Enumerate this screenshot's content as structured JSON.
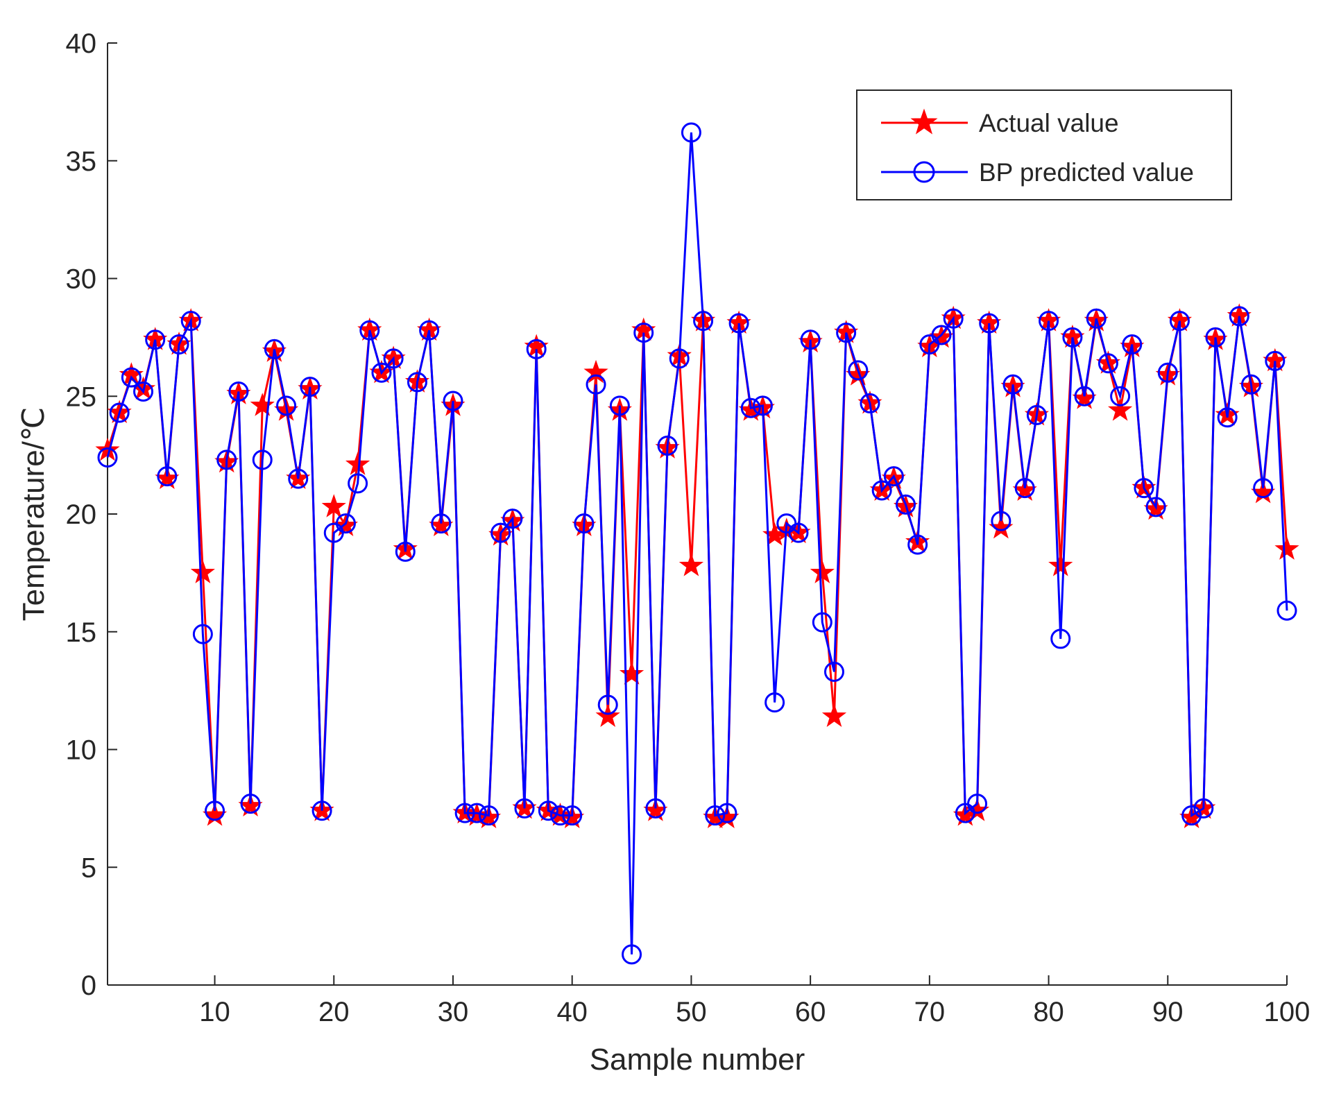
{
  "chart_data": {
    "type": "line",
    "title": "",
    "xlabel": "Sample number",
    "ylabel": "Temperature/℃",
    "xlim": [
      1,
      100
    ],
    "ylim": [
      0,
      40
    ],
    "grid": false,
    "legend_position": "top-right",
    "xticks": [
      10,
      20,
      30,
      40,
      50,
      60,
      70,
      80,
      90,
      100
    ],
    "xtick_labels": [
      "10",
      "20",
      "30",
      "40",
      "50",
      "60",
      "70",
      "80",
      "90",
      "100"
    ],
    "yticks": [
      0,
      5,
      10,
      15,
      20,
      25,
      30,
      35,
      40
    ],
    "ytick_labels": [
      "0",
      "5",
      "10",
      "15",
      "20",
      "25",
      "30",
      "35",
      "40"
    ],
    "x": [
      1,
      2,
      3,
      4,
      5,
      6,
      7,
      8,
      9,
      10,
      11,
      12,
      13,
      14,
      15,
      16,
      17,
      18,
      19,
      20,
      21,
      22,
      23,
      24,
      25,
      26,
      27,
      28,
      29,
      30,
      31,
      32,
      33,
      34,
      35,
      36,
      37,
      38,
      39,
      40,
      41,
      42,
      43,
      44,
      45,
      46,
      47,
      48,
      49,
      50,
      51,
      52,
      53,
      54,
      55,
      56,
      57,
      58,
      59,
      60,
      61,
      62,
      63,
      64,
      65,
      66,
      67,
      68,
      69,
      70,
      71,
      72,
      73,
      74,
      75,
      76,
      77,
      78,
      79,
      80,
      81,
      82,
      83,
      84,
      85,
      86,
      87,
      88,
      89,
      90,
      91,
      92,
      93,
      94,
      95,
      96,
      97,
      98,
      99,
      100
    ],
    "series": [
      {
        "name": "Actual value",
        "color": "#ff0000",
        "marker": "pentagram",
        "values": [
          22.7,
          24.3,
          25.9,
          25.3,
          27.4,
          21.5,
          27.2,
          28.2,
          17.5,
          7.2,
          22.2,
          25.1,
          7.6,
          24.6,
          26.9,
          24.4,
          21.5,
          25.3,
          7.4,
          20.3,
          19.5,
          22.1,
          27.8,
          26.0,
          26.6,
          18.5,
          25.6,
          27.8,
          19.5,
          24.6,
          7.3,
          7.2,
          7.1,
          19.1,
          19.7,
          7.5,
          27.1,
          7.4,
          7.2,
          7.1,
          19.5,
          26.0,
          11.4,
          24.4,
          13.2,
          27.8,
          7.4,
          22.8,
          26.7,
          17.8,
          28.2,
          7.1,
          7.1,
          28.1,
          24.4,
          24.5,
          19.1,
          19.3,
          19.2,
          27.3,
          17.5,
          11.4,
          27.7,
          25.9,
          24.7,
          21.0,
          21.5,
          20.3,
          18.8,
          27.1,
          27.5,
          28.3,
          7.2,
          7.4,
          28.1,
          19.4,
          25.4,
          21.0,
          24.2,
          28.2,
          17.8,
          27.5,
          24.9,
          28.2,
          26.4,
          24.4,
          27.1,
          21.1,
          20.2,
          25.9,
          28.2,
          7.1,
          7.5,
          27.4,
          24.2,
          28.4,
          25.4,
          20.9,
          26.5,
          18.5
        ]
      },
      {
        "name": "BP predicted value",
        "color": "#0000ff",
        "marker": "circle",
        "values": [
          22.4,
          24.3,
          25.8,
          25.2,
          27.4,
          21.6,
          27.2,
          28.2,
          14.9,
          7.4,
          22.3,
          25.2,
          7.7,
          22.3,
          27.0,
          24.6,
          21.5,
          25.4,
          7.4,
          19.2,
          19.6,
          21.3,
          27.8,
          26.0,
          26.6,
          18.4,
          25.6,
          27.8,
          19.6,
          24.8,
          7.3,
          7.3,
          7.2,
          19.2,
          19.8,
          7.5,
          27.0,
          7.4,
          7.2,
          7.2,
          19.6,
          25.5,
          11.9,
          24.6,
          1.3,
          27.7,
          7.5,
          22.9,
          26.6,
          36.2,
          28.2,
          7.2,
          7.3,
          28.1,
          24.5,
          24.6,
          12.0,
          19.6,
          19.2,
          27.4,
          15.4,
          13.3,
          27.7,
          26.1,
          24.7,
          21.0,
          21.6,
          20.4,
          18.7,
          27.2,
          27.6,
          28.3,
          7.3,
          7.7,
          28.1,
          19.7,
          25.5,
          21.1,
          24.2,
          28.2,
          14.7,
          27.5,
          25.0,
          28.3,
          26.4,
          25.0,
          27.2,
          21.1,
          20.3,
          26.0,
          28.2,
          7.2,
          7.5,
          27.5,
          24.1,
          28.4,
          25.5,
          21.1,
          26.5,
          15.9
        ]
      }
    ]
  }
}
